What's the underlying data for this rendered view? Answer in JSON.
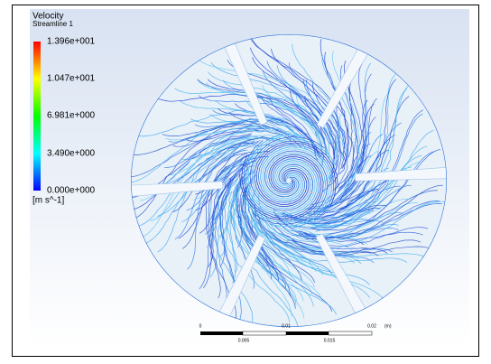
{
  "legend": {
    "title": "Velocity",
    "subtitle": "Streamline 1",
    "labels": [
      "1.396e+001",
      "1.047e+001",
      "6.981e+000",
      "3.490e+000",
      "0.000e+000"
    ],
    "unit": "[m s^-1]"
  },
  "scale_bar": {
    "top_labels": [
      "0",
      "0.01",
      "0.02"
    ],
    "unit": "(m)",
    "bottom_labels": [
      "0.005",
      "0.015"
    ]
  }
}
